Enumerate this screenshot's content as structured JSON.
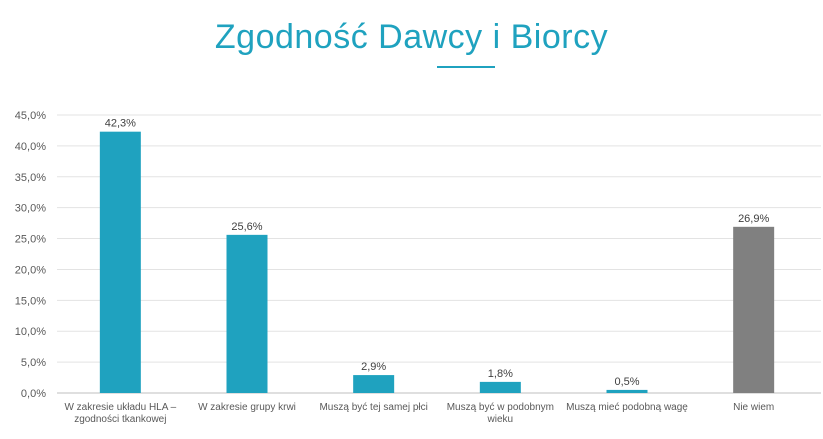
{
  "chart_data": {
    "type": "bar",
    "title": "Zgodność Dawcy i Biorcy",
    "categories": [
      [
        "W zakresie układu HLA –",
        "zgodności tkankowej"
      ],
      [
        "W zakresie grupy krwi"
      ],
      [
        "Muszą być tej samej płci"
      ],
      [
        "Muszą być w podobnym",
        "wieku"
      ],
      [
        "Muszą mieć podobną wagę"
      ],
      [
        "Nie wiem"
      ]
    ],
    "values": [
      42.3,
      25.6,
      2.9,
      1.8,
      0.5,
      26.9
    ],
    "value_labels": [
      "42,3%",
      "25,6%",
      "2,9%",
      "1,8%",
      "0,5%",
      "26,9%"
    ],
    "bar_colors": [
      "#1fa2bf",
      "#1fa2bf",
      "#1fa2bf",
      "#1fa2bf",
      "#1fa2bf",
      "#808080"
    ],
    "ylim": [
      0,
      45
    ],
    "yticks": [
      0,
      5,
      10,
      15,
      20,
      25,
      30,
      35,
      40,
      45
    ],
    "ytick_labels": [
      "0,0%",
      "5,0%",
      "10,0%",
      "15,0%",
      "20,0%",
      "25,0%",
      "30,0%",
      "35,0%",
      "40,0%",
      "45,0%"
    ],
    "xlabel": "",
    "ylabel": "",
    "grid": true,
    "legend": "none"
  }
}
